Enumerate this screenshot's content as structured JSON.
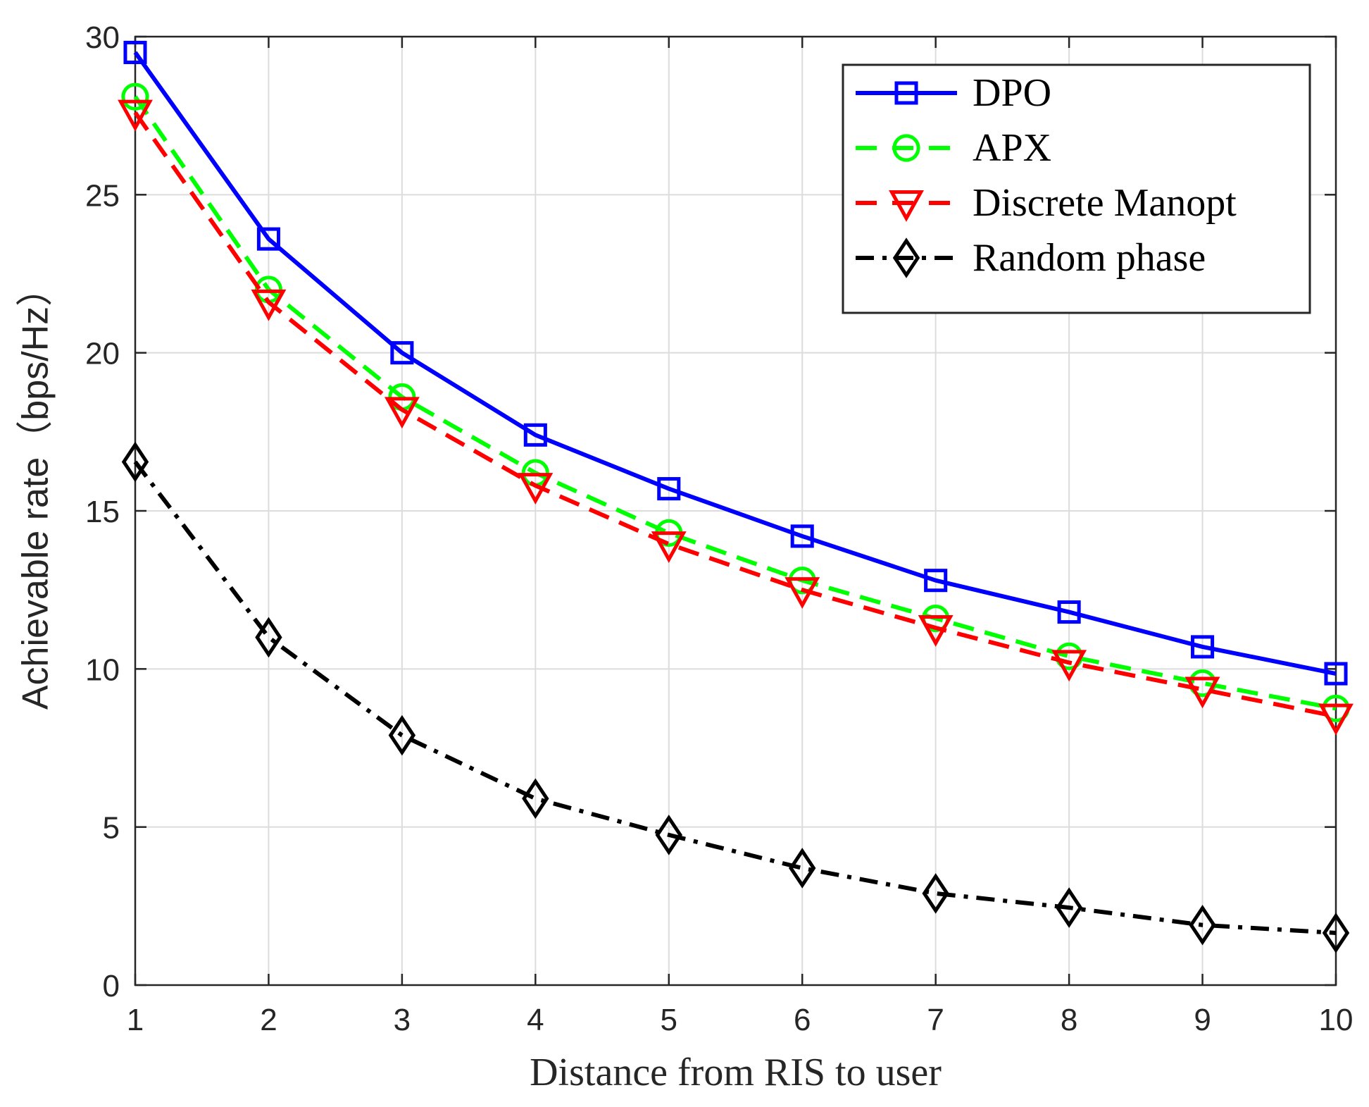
{
  "chart_data": {
    "type": "line",
    "title": "",
    "xlabel": "Distance from RIS to user",
    "ylabel": "Achievable rate（bps/Hz）",
    "x": [
      1,
      2,
      3,
      4,
      5,
      6,
      7,
      8,
      9,
      10
    ],
    "xlim": [
      1,
      10
    ],
    "ylim": [
      0,
      30
    ],
    "xticks": [
      "1",
      "2",
      "3",
      "4",
      "5",
      "6",
      "7",
      "8",
      "9",
      "10"
    ],
    "yticks": [
      "0",
      "5",
      "10",
      "15",
      "20",
      "25",
      "30"
    ],
    "grid": true,
    "legend_position": "top-right",
    "series": [
      {
        "name": "DPO",
        "color": "#0000ff",
        "line": "solid",
        "marker": "square",
        "values": [
          29.5,
          23.6,
          20.0,
          17.4,
          15.7,
          14.2,
          12.8,
          11.8,
          10.7,
          9.85
        ]
      },
      {
        "name": "APX",
        "color": "#00ff00",
        "line": "dashed",
        "marker": "circle",
        "values": [
          28.1,
          22.0,
          18.6,
          16.2,
          14.3,
          12.8,
          11.6,
          10.4,
          9.55,
          8.75
        ]
      },
      {
        "name": "Discrete Manopt",
        "color": "#ff0000",
        "line": "dashed",
        "marker": "triangle-down",
        "values": [
          27.6,
          21.6,
          18.2,
          15.8,
          13.95,
          12.5,
          11.3,
          10.2,
          9.35,
          8.5
        ]
      },
      {
        "name": "Random phase",
        "color": "#000000",
        "line": "dashdot",
        "marker": "diamond",
        "values": [
          16.55,
          11.0,
          7.9,
          5.9,
          4.75,
          3.7,
          2.9,
          2.45,
          1.9,
          1.65
        ]
      }
    ]
  }
}
